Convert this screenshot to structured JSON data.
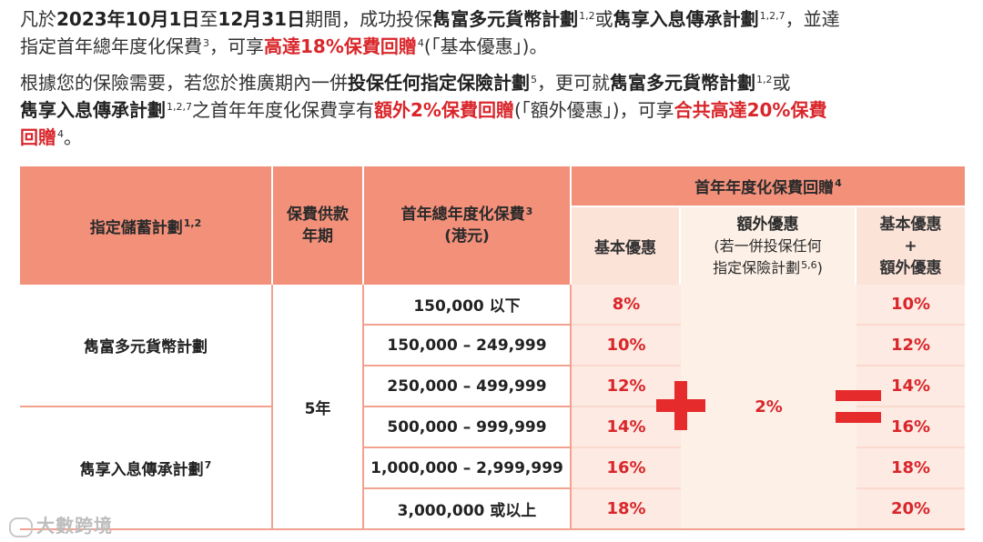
{
  "intro": {
    "p1_a": "凡於",
    "p1_date": "2023年10月1日",
    "p1_b": "至",
    "p1_date2": "12月31日",
    "p1_c": "期間，成功投保",
    "plan_a": "雋富多元貨幣計劃",
    "plan_a_sup": "1,2",
    "p1_or": "或",
    "plan_b": "雋享入息傳承計劃",
    "plan_b_sup": "1,2,7",
    "p1_d": "，並達",
    "p1_e": "指定首年總年度化保費",
    "p1_e_sup": "3",
    "p1_f": "，可享",
    "p1_highlight": "高達18%保費回贈",
    "p1_highlight_sup": "4",
    "p1_g": "(「基本優惠」)。",
    "p2_a": "根據您的保險需要，若您於推廣期內一併",
    "p2_bold": "投保任何指定保險計劃",
    "p2_bold_sup": "5",
    "p2_b": "，更可就",
    "p2_plan_a": "雋富多元貨幣計劃",
    "p2_plan_a_sup": "1,2",
    "p2_or": "或",
    "p2_plan_b": "雋享入息傳承計劃",
    "p2_plan_b_sup": "1,2,7",
    "p2_c": "之首年年度化保費享有",
    "p2_extra": "額外2%保費回贈",
    "p2_d": "(「額外優惠」)，可享",
    "p2_total": "合共高達20%保費",
    "p2_total2": "回贈",
    "p2_total2_sup": "4",
    "p2_end": "。"
  },
  "table": {
    "headers": {
      "plan": "指定儲蓄計劃",
      "plan_sup": "1,2",
      "term_line1": "保費供款",
      "term_line2": "年期",
      "premium_line1": "首年總年度化保費",
      "premium_sup": "3",
      "premium_line2": "(港元)",
      "rebate": "首年年度化保費回贈",
      "rebate_sup": "4",
      "basic": "基本優惠",
      "extra_line1": "額外優惠",
      "extra_line2": "(若一併投保任何",
      "extra_line3": "指定保險計劃",
      "extra_line3_sup": "5,6",
      "extra_line3_end": ")",
      "combined_line1": "基本優惠",
      "combined_line2": "+",
      "combined_line3": "額外優惠"
    },
    "plans": [
      {
        "name": "雋富多元貨幣計劃",
        "sup": ""
      },
      {
        "name": "雋享入息傳承計劃",
        "sup": "7"
      }
    ],
    "term": "5年",
    "extra_value": "2%",
    "rows": [
      {
        "range": "150,000 以下",
        "basic": "8%",
        "total": "10%"
      },
      {
        "range": "150,000 – 249,999",
        "basic": "10%",
        "total": "12%"
      },
      {
        "range": "250,000 – 499,999",
        "basic": "12%",
        "total": "14%"
      },
      {
        "range": "500,000 – 999,999",
        "basic": "14%",
        "total": "16%"
      },
      {
        "range": "1,000,000 – 2,999,999",
        "basic": "16%",
        "total": "18%"
      },
      {
        "range": "3,000,000 或以上",
        "basic": "18%",
        "total": "20%"
      }
    ]
  },
  "symbols": {
    "plus": "plus-icon",
    "equals": "equals-icon",
    "color": "#e52b2b"
  },
  "watermark": "大數跨境"
}
